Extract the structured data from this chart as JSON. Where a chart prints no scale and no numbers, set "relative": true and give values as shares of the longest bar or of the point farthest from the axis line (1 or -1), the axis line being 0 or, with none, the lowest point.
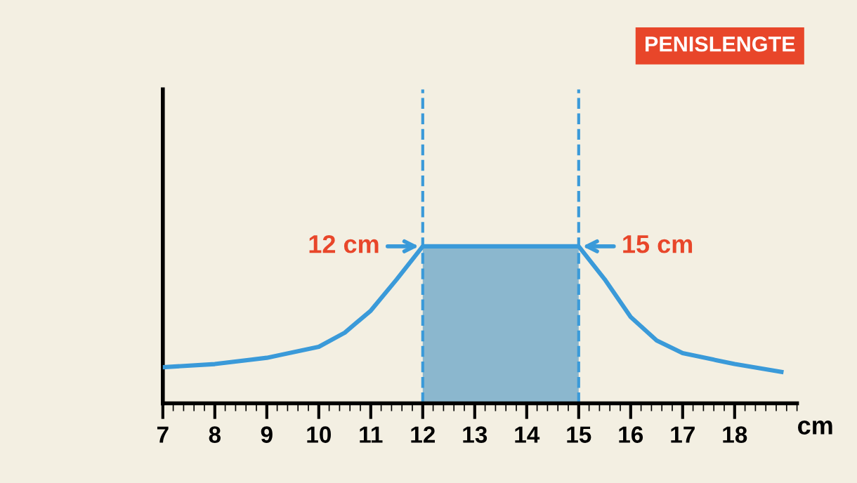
{
  "chart_data": {
    "type": "line",
    "title": "PENISLENGTE",
    "xlabel": "cm",
    "relative": true,
    "x": [
      7,
      8,
      9,
      10,
      10.5,
      11,
      11.5,
      12,
      15,
      15.5,
      16,
      16.5,
      17,
      18,
      18.9
    ],
    "series": [
      {
        "color": "#3a9ad9",
        "values": [
          0.23,
          0.25,
          0.29,
          0.36,
          0.45,
          0.59,
          0.79,
          1,
          1,
          0.79,
          0.55,
          0.4,
          0.32,
          0.25,
          0.2
        ]
      }
    ],
    "xlim": [
      7,
      19.2
    ],
    "xticks": [
      7,
      8,
      9,
      10,
      11,
      12,
      13,
      14,
      15,
      16,
      17,
      18
    ],
    "bands": [
      {
        "axis": "x",
        "from": 12,
        "to": 15,
        "color": "#7fb0cc"
      }
    ],
    "ref_lines": [
      {
        "axis": "x",
        "value": 12,
        "color": "#3a9ad9",
        "line_style": "dashed"
      },
      {
        "axis": "x",
        "value": 15,
        "color": "#3a9ad9",
        "line_style": "dashed"
      }
    ],
    "annotations": [
      {
        "text": "12 cm",
        "x": 12,
        "y": 1
      },
      {
        "text": "15 cm",
        "x": 15,
        "y": 1
      }
    ],
    "tick_labels": "x",
    "grid": false,
    "legend": false,
    "marker": "none",
    "line_style": "solid"
  }
}
